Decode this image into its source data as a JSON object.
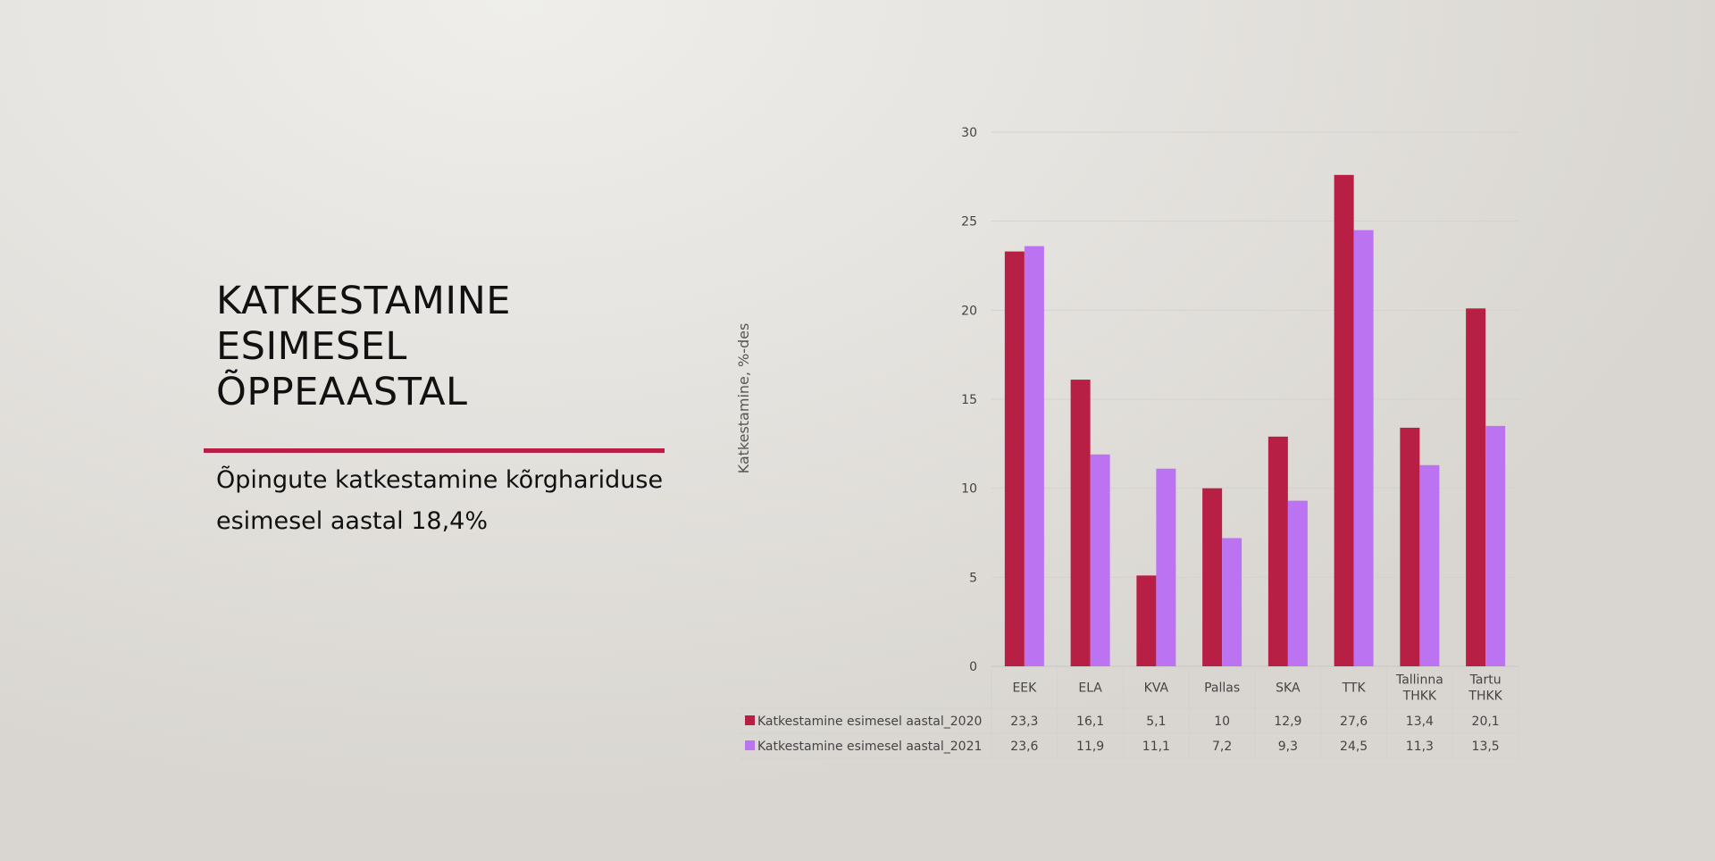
{
  "slide": {
    "title": "KATKESTAMINE\nESIMESEL\nÕPPEAASTAL",
    "subtitle": "Õpingute katkestamine kõrghariduse esimesel aastal 18,4%"
  },
  "colors": {
    "accent": "#b81f45",
    "series_2020": "#b81f45",
    "series_2021": "#bb73f1",
    "text": "#111111",
    "axis_text": "#444444",
    "grid": "#d4d2ce"
  },
  "chart_data": {
    "type": "bar",
    "title": "",
    "xlabel": "",
    "ylabel": "Katkestamine, %-des",
    "ylim": [
      0,
      30
    ],
    "yticks": [
      "0",
      "5",
      "10",
      "15",
      "20",
      "25",
      "30"
    ],
    "grid": true,
    "legend": "data-table",
    "categories": [
      "EEK",
      "ELA",
      "KVA",
      "Pallas",
      "SKA",
      "TTK",
      "Tallinna\nTHKK",
      "Tartu\nTHKK"
    ],
    "series": [
      {
        "name": "Katkestamine esimesel aastal_2020",
        "values": [
          23.3,
          16.1,
          5.1,
          10,
          12.9,
          27.6,
          13.4,
          20.1
        ],
        "labels": [
          "23,3",
          "16,1",
          "5,1",
          "10",
          "12,9",
          "27,6",
          "13,4",
          "20,1"
        ]
      },
      {
        "name": "Katkestamine esimesel aastal_2021",
        "values": [
          23.6,
          11.9,
          11.1,
          7.2,
          9.3,
          24.5,
          11.3,
          13.5
        ],
        "labels": [
          "23,6",
          "11,9",
          "11,1",
          "7,2",
          "9,3",
          "24,5",
          "11,3",
          "13,5"
        ]
      }
    ]
  }
}
